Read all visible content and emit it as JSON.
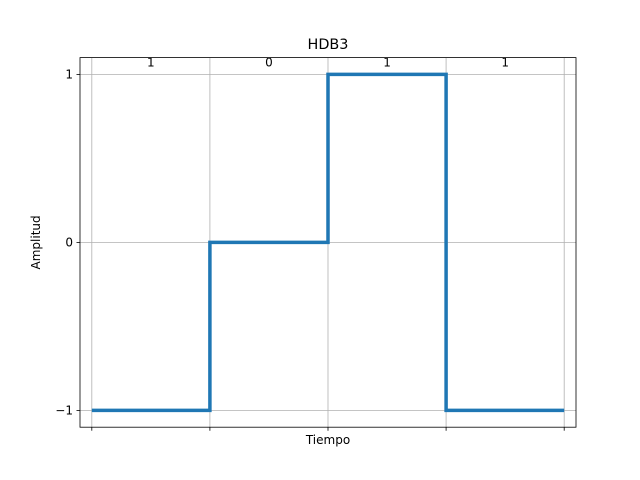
{
  "chart_data": {
    "type": "line",
    "title": "HDB3",
    "xlabel": "Tiempo",
    "ylabel": "Amplitud",
    "x_tick_labels_shown": false,
    "yticks": [
      -1,
      0,
      1
    ],
    "ytick_labels": [
      "−1",
      "0",
      "1"
    ],
    "xlim": [
      -0.1,
      4.1
    ],
    "ylim": [
      -1.1,
      1.1
    ],
    "grid": true,
    "grid_color": "#b0b0b0",
    "line_color": "#1f77b4",
    "step_where": "post",
    "series": [
      {
        "x": [
          0,
          1,
          2,
          3,
          4
        ],
        "y": [
          -1,
          0,
          1,
          -1,
          -1
        ]
      }
    ],
    "bits": [
      "1",
      "0",
      "1",
      "1"
    ],
    "bit_label_y": 1.05
  }
}
